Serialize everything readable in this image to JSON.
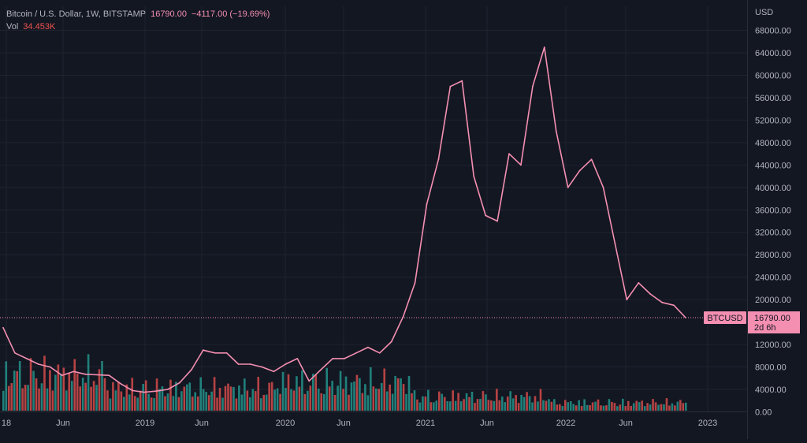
{
  "legend": {
    "symbol": "Bitcoin / U.S. Dollar, 1W, BITSTAMP",
    "last": "16790.00",
    "change": "−4117.00 (−19.69%)",
    "vol_label": "Vol",
    "vol_value": "34.453K"
  },
  "axis": {
    "currency": "USD",
    "price_ticks": [
      "68000.00",
      "64000.00",
      "60000.00",
      "56000.00",
      "52000.00",
      "48000.00",
      "44000.00",
      "40000.00",
      "36000.00",
      "32000.00",
      "28000.00",
      "24000.00",
      "20000.00",
      "12000.00",
      "8000.00",
      "4000.00",
      "0.00"
    ],
    "time_ticks": [
      "18",
      "Jun",
      "2019",
      "Jun",
      "2020",
      "Jun",
      "2021",
      "Jun",
      "2022",
      "Jun",
      "2023"
    ]
  },
  "badge": {
    "symbol": "BTCUSD",
    "price": "16790.00",
    "countdown": "2d 6h"
  },
  "colors": {
    "background": "#131722",
    "line": "#f48fb1",
    "volume_up": "#26a69a",
    "volume_down": "#ef5350",
    "grid": "#1f2330",
    "badge_bg": "#f48fb1"
  },
  "chart_data": {
    "type": "line",
    "title": "Bitcoin / U.S. Dollar, 1W, BITSTAMP",
    "ylabel": "USD",
    "ylim": [
      0,
      68000
    ],
    "series": [
      {
        "name": "BTCUSD",
        "x": [
          "2018-01",
          "2018-02",
          "2018-03",
          "2018-04",
          "2018-05",
          "2018-06",
          "2018-07",
          "2018-08",
          "2018-09",
          "2018-10",
          "2018-11",
          "2018-12",
          "2019-01",
          "2019-02",
          "2019-03",
          "2019-04",
          "2019-05",
          "2019-06",
          "2019-07",
          "2019-08",
          "2019-09",
          "2019-10",
          "2019-11",
          "2019-12",
          "2020-01",
          "2020-02",
          "2020-03",
          "2020-04",
          "2020-05",
          "2020-06",
          "2020-07",
          "2020-08",
          "2020-09",
          "2020-10",
          "2020-11",
          "2020-12",
          "2021-01",
          "2021-02",
          "2021-03",
          "2021-04",
          "2021-05",
          "2021-06",
          "2021-07",
          "2021-08",
          "2021-09",
          "2021-10",
          "2021-11",
          "2021-12",
          "2022-01",
          "2022-02",
          "2022-03",
          "2022-04",
          "2022-05",
          "2022-06",
          "2022-07",
          "2022-08",
          "2022-09",
          "2022-10",
          "2022-11"
        ],
        "values": [
          15000,
          10500,
          9500,
          8500,
          8000,
          6500,
          7200,
          6700,
          6600,
          6500,
          5000,
          3800,
          3500,
          3700,
          4000,
          5200,
          7500,
          11000,
          10500,
          10500,
          8500,
          8500,
          8000,
          7200,
          8500,
          9500,
          5500,
          7500,
          9500,
          9500,
          10500,
          11500,
          10500,
          12500,
          17000,
          23000,
          37000,
          45000,
          58000,
          59000,
          42000,
          35000,
          34000,
          46000,
          44000,
          58000,
          65000,
          50000,
          40000,
          43000,
          45000,
          40000,
          30000,
          20000,
          23000,
          21000,
          19500,
          19000,
          16790
        ]
      }
    ],
    "volume_ylim": [
      0,
      40000
    ]
  }
}
